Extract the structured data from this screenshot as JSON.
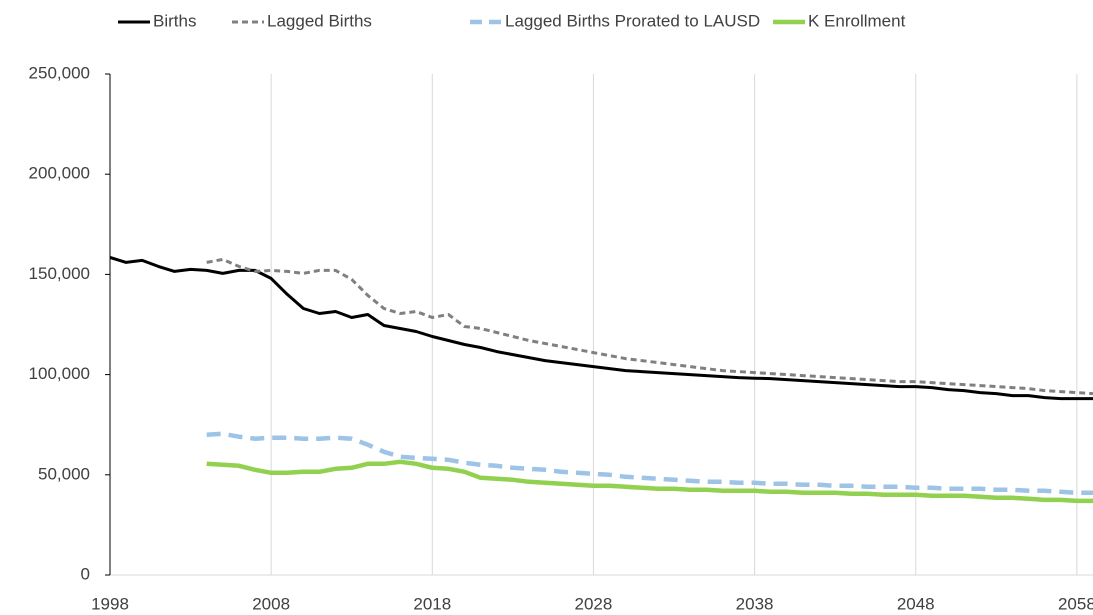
{
  "chart_data": {
    "type": "line",
    "x": [
      1998,
      1999,
      2000,
      2001,
      2002,
      2003,
      2004,
      2005,
      2006,
      2007,
      2008,
      2009,
      2010,
      2011,
      2012,
      2013,
      2014,
      2015,
      2016,
      2017,
      2018,
      2019,
      2020,
      2021,
      2022,
      2023,
      2024,
      2025,
      2026,
      2027,
      2028,
      2029,
      2030,
      2031,
      2032,
      2033,
      2034,
      2035,
      2036,
      2037,
      2038,
      2039,
      2040,
      2041,
      2042,
      2043,
      2044,
      2045,
      2046,
      2047,
      2048,
      2049,
      2050,
      2051,
      2052,
      2053,
      2054,
      2055,
      2056,
      2057,
      2058,
      2059
    ],
    "series": [
      {
        "name": "Births",
        "color": "#000000",
        "width": 3,
        "dash": false,
        "values": [
          158500,
          156000,
          157000,
          154000,
          151500,
          152500,
          152000,
          150500,
          152000,
          152000,
          148000,
          140000,
          133000,
          130500,
          131500,
          128500,
          130000,
          124500,
          123000,
          121500,
          119000,
          117000,
          115000,
          113500,
          111500,
          110000,
          108500,
          107000,
          106000,
          105000,
          104000,
          103000,
          102000,
          101500,
          101000,
          100500,
          100000,
          99500,
          99000,
          98500,
          98200,
          98000,
          97500,
          97000,
          96500,
          96000,
          95500,
          95000,
          94500,
          94000,
          94000,
          93500,
          92500,
          92000,
          91000,
          90500,
          89500,
          89500,
          88500,
          88000,
          88000,
          88000
        ]
      },
      {
        "name": "Lagged Births",
        "color": "#808080",
        "width": 3,
        "dash": true,
        "values": [
          null,
          null,
          null,
          null,
          null,
          null,
          156000,
          157500,
          154000,
          151500,
          152000,
          151500,
          150500,
          152000,
          152000,
          147500,
          139500,
          133000,
          130500,
          131500,
          128500,
          130000,
          124000,
          123000,
          121000,
          119000,
          117000,
          115500,
          114000,
          112500,
          111000,
          109500,
          108000,
          107000,
          106000,
          105000,
          104000,
          103000,
          102000,
          101500,
          101000,
          100500,
          100000,
          99500,
          99000,
          98500,
          98000,
          97500,
          97000,
          96500,
          96500,
          96000,
          95500,
          95000,
          94500,
          94000,
          93500,
          93000,
          92000,
          91500,
          91000,
          90500
        ]
      },
      {
        "name": "Lagged Births Prorated to LAUSD",
        "color": "#9dc3e6",
        "width": 4.5,
        "dash": true,
        "values": [
          null,
          null,
          null,
          null,
          null,
          null,
          70000,
          70500,
          69000,
          68000,
          68500,
          68500,
          68000,
          68000,
          68500,
          68000,
          65000,
          61500,
          59000,
          58500,
          58000,
          57500,
          56000,
          55000,
          54500,
          53500,
          53000,
          52500,
          51500,
          51000,
          50500,
          50000,
          49000,
          48500,
          48000,
          47500,
          47000,
          46500,
          46500,
          46000,
          46000,
          45500,
          45500,
          45000,
          45000,
          44500,
          44500,
          44000,
          44000,
          44000,
          43500,
          43500,
          43000,
          43000,
          43000,
          42500,
          42500,
          42000,
          42000,
          41500,
          41000,
          41000
        ]
      },
      {
        "name": "K Enrollment",
        "color": "#92d050",
        "width": 4.5,
        "dash": false,
        "values": [
          null,
          null,
          null,
          null,
          null,
          null,
          55500,
          55000,
          54500,
          52500,
          51000,
          51000,
          51500,
          51500,
          53000,
          53500,
          55500,
          55500,
          56500,
          55500,
          53500,
          53000,
          51500,
          48500,
          48000,
          47500,
          46500,
          46000,
          45500,
          45000,
          44500,
          44500,
          44000,
          43500,
          43000,
          43000,
          42500,
          42500,
          42000,
          42000,
          42000,
          41500,
          41500,
          41000,
          41000,
          41000,
          40500,
          40500,
          40000,
          40000,
          40000,
          39500,
          39500,
          39500,
          39000,
          38500,
          38500,
          38000,
          37500,
          37500,
          37000,
          37000
        ]
      }
    ],
    "xlim": [
      1998,
      2059
    ],
    "xticks": [
      1998,
      2008,
      2018,
      2028,
      2038,
      2048,
      2058
    ],
    "ylim": [
      0,
      250000
    ],
    "yticks": [
      0,
      {
        "value": 50000,
        "label": "50,000"
      },
      {
        "value": 100000,
        "label": "100,000"
      },
      {
        "value": 150000,
        "label": "150,000"
      },
      {
        "value": 200000,
        "label": "200,000"
      },
      {
        "value": 250000,
        "label": "250,000"
      }
    ],
    "grid": "x",
    "legend": "top"
  }
}
